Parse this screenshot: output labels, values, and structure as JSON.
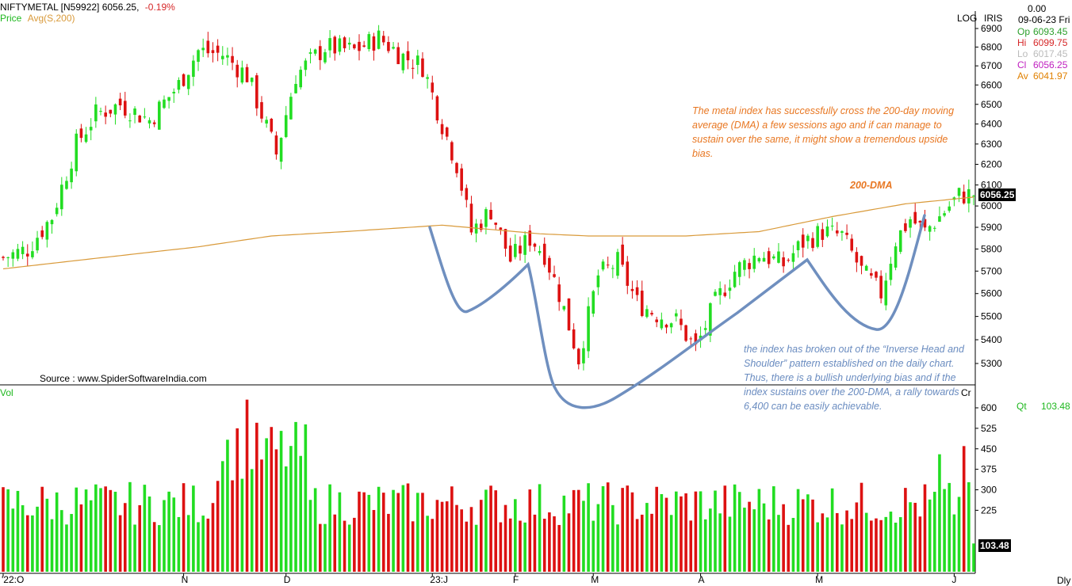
{
  "header": {
    "symbol": "NIFTYMETAL [N59922]",
    "last_price": "6056.25,",
    "change_pct": "-0.19%",
    "legend_price": "Price",
    "legend_avg": "Avg(S,200)",
    "log_label": "LOG",
    "iris_label": "IRIS"
  },
  "info_panel": {
    "value_top": "0.00",
    "date": "09-06-23 Fri",
    "rows": [
      {
        "k": "Op",
        "v": "6093.45",
        "color": "#2ca02c"
      },
      {
        "k": "Hi",
        "v": "6099.75",
        "color": "#d62728"
      },
      {
        "k": "Lo",
        "v": "6017.45",
        "color": "#bbbbbb"
      },
      {
        "k": "Cl",
        "v": "6056.25",
        "color": "#c020c0"
      },
      {
        "k": "Av",
        "v": "6041.97",
        "color": "#e08000"
      }
    ]
  },
  "source_text": "Source : www.SpiderSoftwareIndia.com",
  "annotations": {
    "dma_note": "The metal index has successfully cross the 200-day moving average (DMA) a few sessions ago and if can manage to sustain over the same, it might show a tremendous upside bias.",
    "dma_label": "200-DMA",
    "ihs_note": "the index has broken out of the “Inverse Head and Shoulder” pattern established on the daily chart. Thus, there is a bullish underlying bias and if the index sustains over the 200-DMA, a rally towards 6,400 can be easily achievable."
  },
  "volume_panel": {
    "label": "Vol",
    "qt_label": "Qt",
    "qt_value": "103.48",
    "last_box": "103.48",
    "cr_label": "Cr"
  },
  "price_box": "6056.25",
  "dly_label": "Dly",
  "colors": {
    "up": "#22dd22",
    "down": "#dd1111",
    "dma": "#d99a3a",
    "annotation_orange": "#e87722",
    "annotation_blue": "#6a8cc0",
    "pattern_line": "#6f8fbf"
  },
  "chart_data": [
    {
      "type": "candlestick",
      "title": "NIFTYMETAL [N59922]",
      "y_scale": "log",
      "ylim": [
        5200,
        6950
      ],
      "yticks": [
        5300,
        5400,
        5500,
        5600,
        5700,
        5800,
        5900,
        6000,
        6100,
        6200,
        6300,
        6400,
        6500,
        6600,
        6700,
        6800,
        6900
      ],
      "x_ticks": [
        "'22:O",
        "N",
        "D",
        "23:J",
        "F",
        "M",
        "A",
        "M",
        "J"
      ],
      "price_anchors": [
        {
          "i": 0,
          "c": 5760
        },
        {
          "i": 5,
          "c": 5800
        },
        {
          "i": 10,
          "c": 5950
        },
        {
          "i": 15,
          "c": 6300
        },
        {
          "i": 19,
          "c": 6450
        },
        {
          "i": 24,
          "c": 6500
        },
        {
          "i": 30,
          "c": 6420
        },
        {
          "i": 36,
          "c": 6600
        },
        {
          "i": 40,
          "c": 6780
        },
        {
          "i": 45,
          "c": 6760
        },
        {
          "i": 50,
          "c": 6650
        },
        {
          "i": 53,
          "c": 6450
        },
        {
          "i": 56,
          "c": 6250
        },
        {
          "i": 60,
          "c": 6650
        },
        {
          "i": 66,
          "c": 6800
        },
        {
          "i": 72,
          "c": 6780
        },
        {
          "i": 77,
          "c": 6850
        },
        {
          "i": 82,
          "c": 6750
        },
        {
          "i": 86,
          "c": 6700
        },
        {
          "i": 90,
          "c": 6400
        },
        {
          "i": 93,
          "c": 6200
        },
        {
          "i": 96,
          "c": 5880
        },
        {
          "i": 100,
          "c": 5980
        },
        {
          "i": 104,
          "c": 5750
        },
        {
          "i": 108,
          "c": 5850
        },
        {
          "i": 111,
          "c": 5780
        },
        {
          "i": 114,
          "c": 5600
        },
        {
          "i": 118,
          "c": 5320
        },
        {
          "i": 122,
          "c": 5680
        },
        {
          "i": 126,
          "c": 5740
        },
        {
          "i": 130,
          "c": 5560
        },
        {
          "i": 134,
          "c": 5510
        },
        {
          "i": 138,
          "c": 5480
        },
        {
          "i": 142,
          "c": 5360
        },
        {
          "i": 146,
          "c": 5560
        },
        {
          "i": 150,
          "c": 5700
        },
        {
          "i": 155,
          "c": 5780
        },
        {
          "i": 160,
          "c": 5730
        },
        {
          "i": 164,
          "c": 5830
        },
        {
          "i": 168,
          "c": 5880
        },
        {
          "i": 172,
          "c": 5860
        },
        {
          "i": 176,
          "c": 5700
        },
        {
          "i": 180,
          "c": 5600
        },
        {
          "i": 183,
          "c": 5840
        },
        {
          "i": 186,
          "c": 5940
        },
        {
          "i": 189,
          "c": 5880
        },
        {
          "i": 192,
          "c": 5950
        },
        {
          "i": 196,
          "c": 6050
        },
        {
          "i": 199,
          "c": 6056
        }
      ],
      "dma_200": [
        {
          "i": 0,
          "v": 5710
        },
        {
          "i": 20,
          "v": 5760
        },
        {
          "i": 40,
          "v": 5810
        },
        {
          "i": 55,
          "v": 5860
        },
        {
          "i": 70,
          "v": 5880
        },
        {
          "i": 90,
          "v": 5910
        },
        {
          "i": 100,
          "v": 5890
        },
        {
          "i": 110,
          "v": 5870
        },
        {
          "i": 120,
          "v": 5860
        },
        {
          "i": 140,
          "v": 5860
        },
        {
          "i": 155,
          "v": 5880
        },
        {
          "i": 170,
          "v": 5950
        },
        {
          "i": 185,
          "v": 6010
        },
        {
          "i": 199,
          "v": 6042
        }
      ]
    },
    {
      "type": "bar",
      "title": "Vol",
      "ylim": [
        0,
        650
      ],
      "yticks": [
        225,
        300,
        375,
        450,
        525,
        600
      ],
      "last_value": 103.48
    }
  ]
}
